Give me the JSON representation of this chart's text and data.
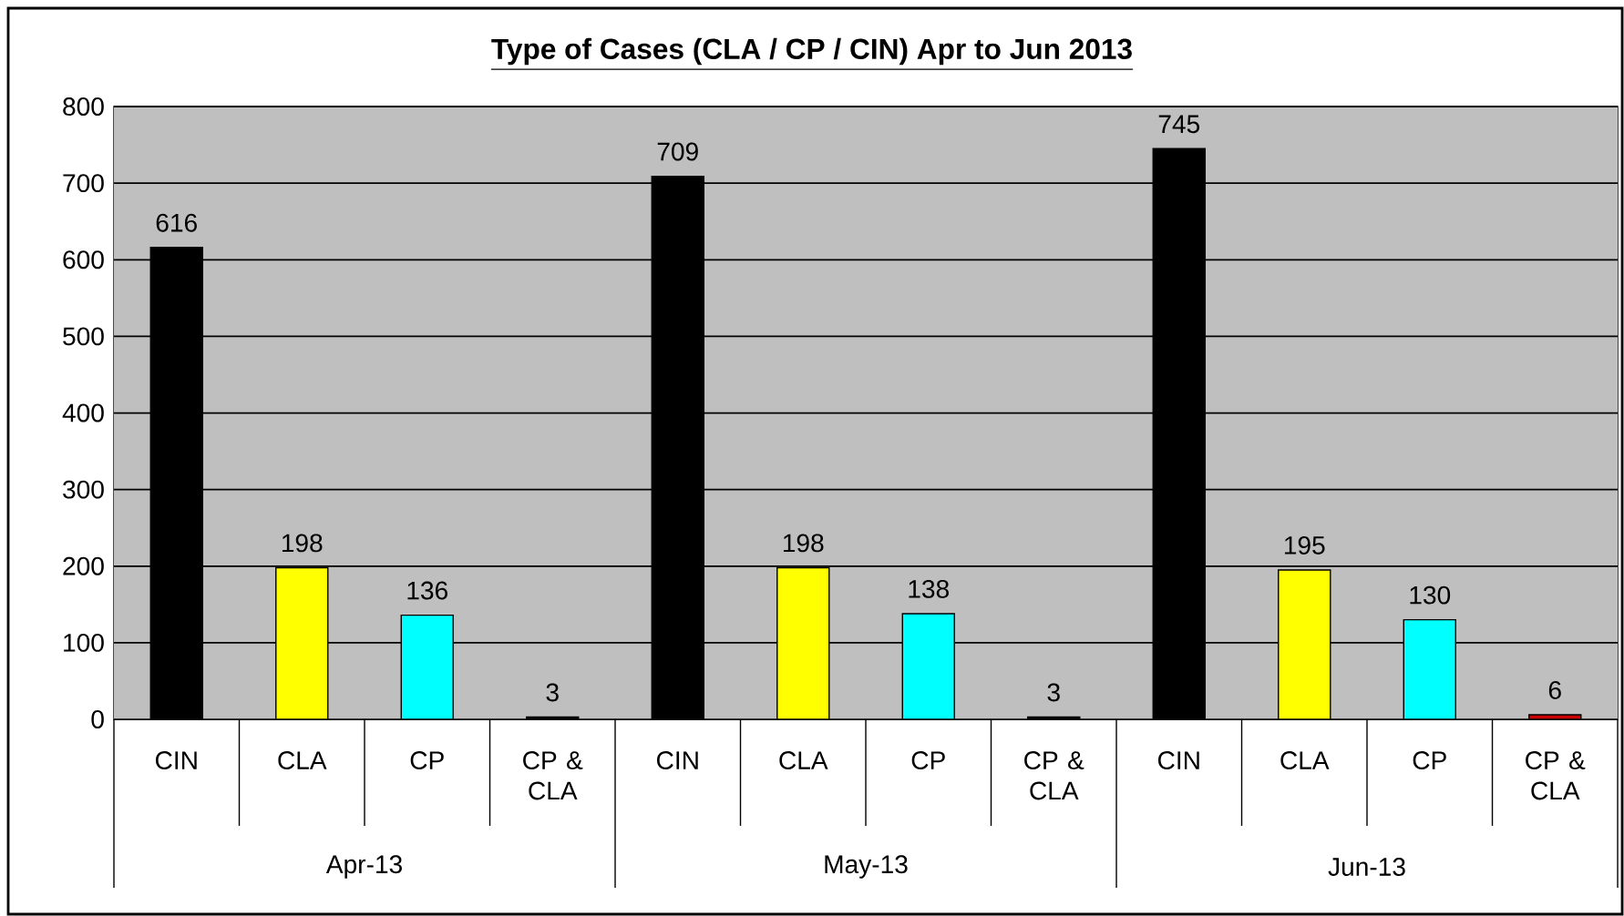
{
  "chart_data": {
    "type": "bar",
    "title": "Type of Cases (CLA / CP / CIN) Apr to Jun 2013",
    "categories": [
      "CIN",
      "CLA",
      "CP",
      "CP & CLA",
      "CIN",
      "CLA",
      "CP",
      "CP & CLA",
      "CIN",
      "CLA",
      "CP",
      "CP & CLA"
    ],
    "values": [
      616,
      198,
      136,
      3,
      709,
      198,
      138,
      3,
      745,
      195,
      130,
      6
    ],
    "colors": [
      "#000000",
      "#ffff00",
      "#00ffff",
      "#000000",
      "#000000",
      "#ffff00",
      "#00ffff",
      "#000000",
      "#000000",
      "#ffff00",
      "#00ffff",
      "#cc0000"
    ],
    "annotations": [
      "Apr-13",
      "May-13",
      "Jun-13"
    ],
    "ylim": [
      0,
      800
    ],
    "yticks": [
      0,
      100,
      200,
      300,
      400,
      500,
      600,
      700,
      800
    ],
    "grid": "y",
    "data_labels": true
  }
}
